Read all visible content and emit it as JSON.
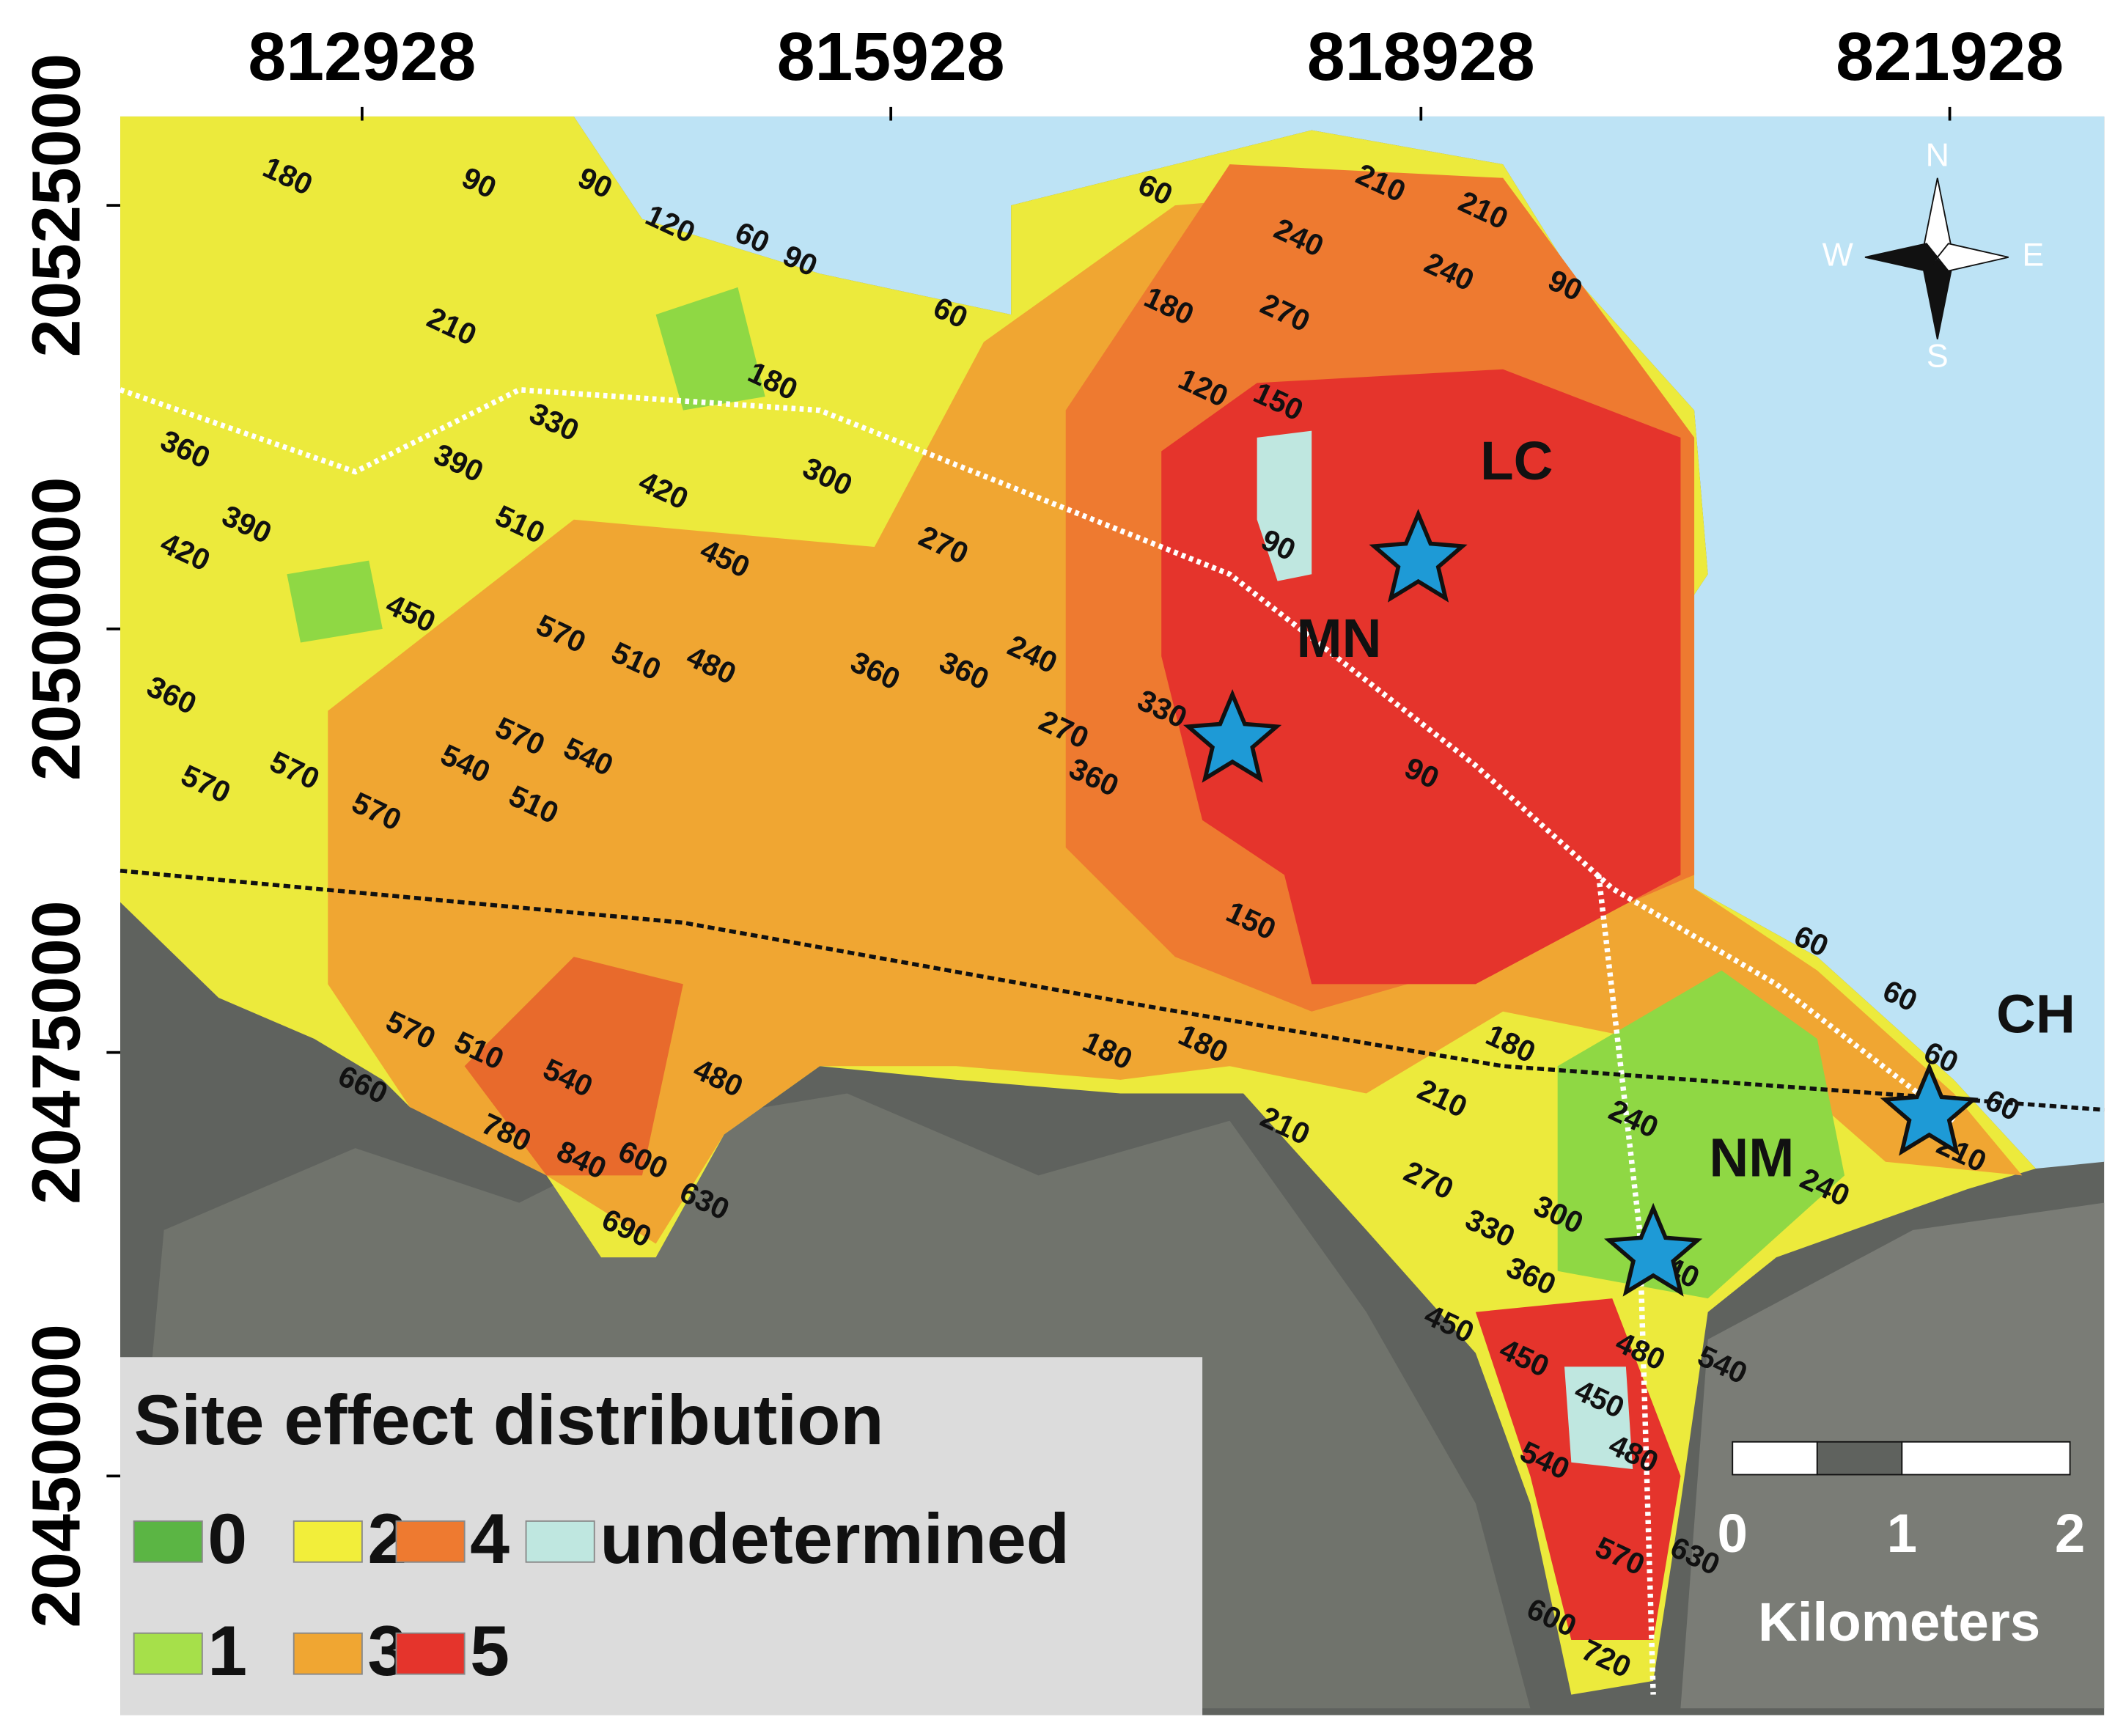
{
  "axes": {
    "top": [
      "812928",
      "815928",
      "818928",
      "821928"
    ],
    "left": [
      "20525000",
      "20500000",
      "20475000",
      "20450000"
    ]
  },
  "contour_labels": [
    "180",
    "90",
    "90",
    "120",
    "60",
    "90",
    "210",
    "60",
    "180",
    "60",
    "180",
    "210",
    "210",
    "240",
    "240",
    "90",
    "270",
    "120",
    "150",
    "330",
    "390",
    "360",
    "390",
    "420",
    "510",
    "420",
    "300",
    "270",
    "450",
    "450",
    "570",
    "510",
    "480",
    "360",
    "360",
    "240",
    "270",
    "330",
    "360",
    "90",
    "360",
    "570",
    "570",
    "570",
    "570",
    "540",
    "540",
    "510",
    "90",
    "150",
    "60",
    "60",
    "60",
    "60",
    "210",
    "180",
    "180",
    "180",
    "210",
    "240",
    "240",
    "210",
    "270",
    "330",
    "360",
    "300",
    "240",
    "570",
    "510",
    "540",
    "480",
    "660",
    "780",
    "840",
    "600",
    "690",
    "630",
    "450",
    "450",
    "450",
    "480",
    "480",
    "540",
    "540",
    "570",
    "630",
    "600",
    "720"
  ],
  "sites": [
    "LC",
    "MN",
    "CH",
    "NM"
  ],
  "compass": [
    "N",
    "W",
    "E",
    "S"
  ],
  "legend": {
    "title": "Site effect distribution",
    "items": [
      "0",
      "2",
      "4",
      "undetermined",
      "1",
      "3",
      "5"
    ]
  },
  "scale_bar": {
    "ticks": [
      "0",
      "1",
      "2"
    ],
    "unit": "Kilometers"
  }
}
